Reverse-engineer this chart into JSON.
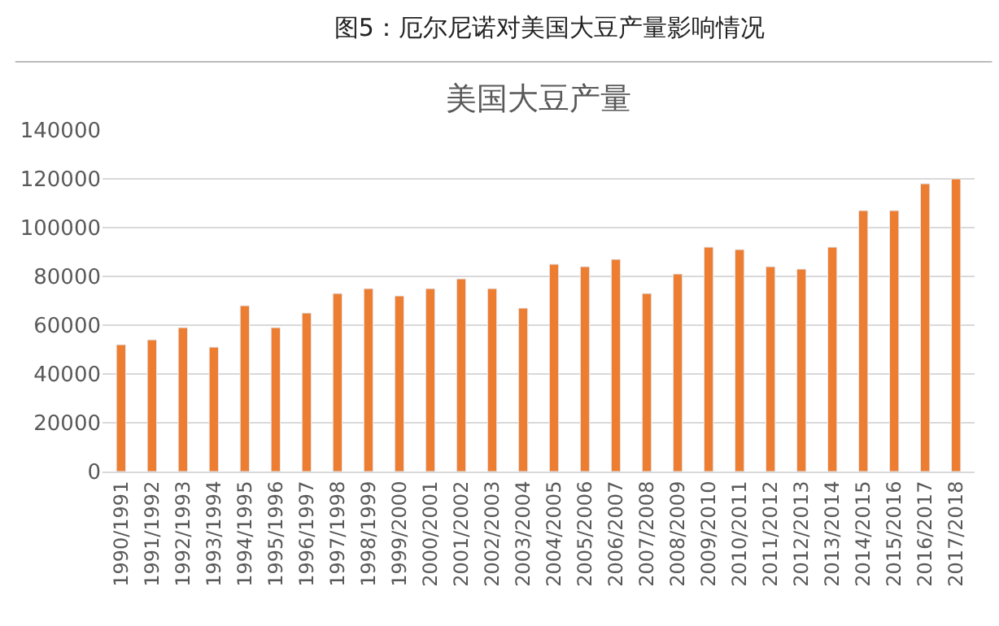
{
  "chart_data": {
    "type": "bar",
    "title": "图5：厄尔尼诺对美国大豆产量影响情况",
    "subtitle": "美国大豆产量",
    "categories": [
      "1990/1991",
      "1991/1992",
      "1992/1993",
      "1993/1994",
      "1994/1995",
      "1995/1996",
      "1996/1997",
      "1997/1998",
      "1998/1999",
      "1999/2000",
      "2000/2001",
      "2001/2002",
      "2002/2003",
      "2003/2004",
      "2004/2005",
      "2005/2006",
      "2006/2007",
      "2007/2008",
      "2008/2009",
      "2009/2010",
      "2010/2011",
      "2011/2012",
      "2012/2013",
      "2013/2014",
      "2014/2015",
      "2015/2016",
      "2016/2017",
      "2017/2018"
    ],
    "values": [
      52000,
      54000,
      59000,
      51000,
      68000,
      59000,
      65000,
      73000,
      75000,
      72000,
      75000,
      79000,
      75000,
      67000,
      85000,
      84000,
      87000,
      73000,
      81000,
      92000,
      91000,
      84000,
      83000,
      92000,
      107000,
      107000,
      118000,
      120000
    ],
    "color": "#ed7d31",
    "ylim": [
      0,
      140000
    ],
    "yticks": [
      0,
      20000,
      40000,
      60000,
      80000,
      100000,
      120000,
      140000
    ],
    "grid": "y"
  }
}
